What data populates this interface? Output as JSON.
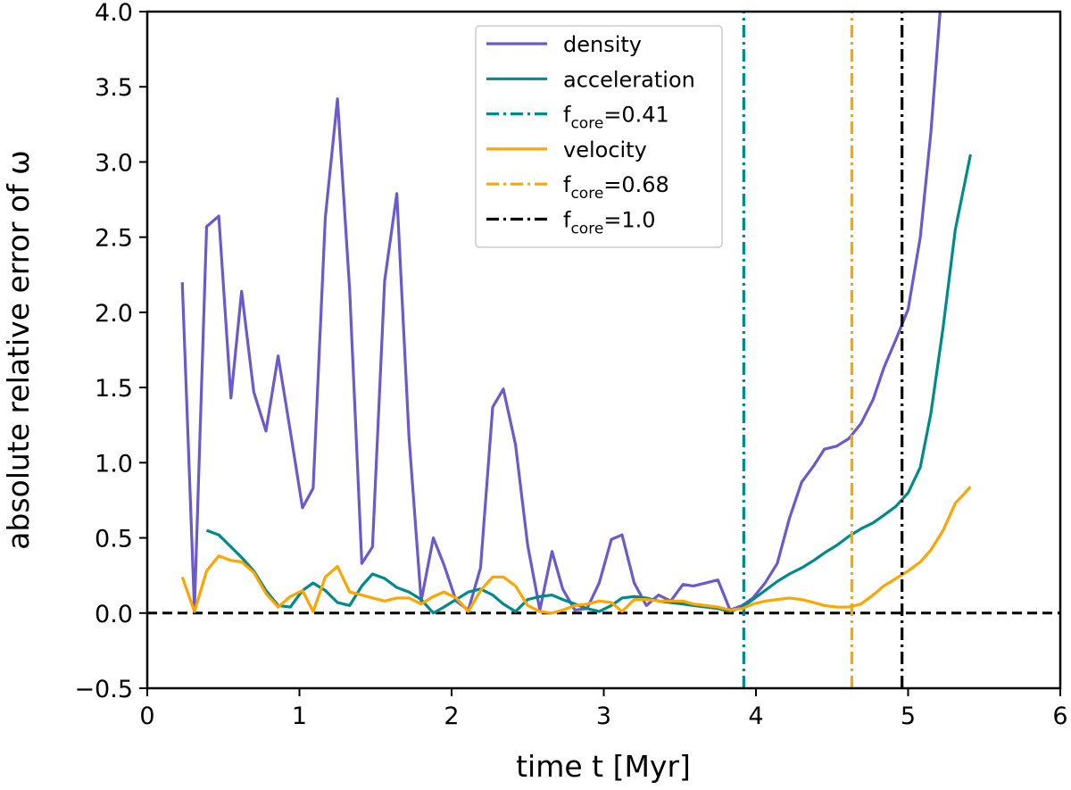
{
  "chart_data": {
    "type": "line",
    "title": "",
    "xlabel": "time t [Myr]",
    "ylabel": "absolute relative error of ω",
    "xlim": [
      0,
      6
    ],
    "ylim": [
      -0.5,
      4.0
    ],
    "xticks": [
      0,
      1,
      2,
      3,
      4,
      5,
      6
    ],
    "xtick_labels": [
      "0",
      "1",
      "2",
      "3",
      "4",
      "5",
      "6"
    ],
    "yticks": [
      -0.5,
      0.0,
      0.5,
      1.0,
      1.5,
      2.0,
      2.5,
      3.0,
      3.5,
      4.0
    ],
    "ytick_labels": [
      "−0.5",
      "0.0",
      "0.5",
      "1.0",
      "1.5",
      "2.0",
      "2.5",
      "3.0",
      "3.5",
      "4.0"
    ],
    "grid": false,
    "legend_position": "top-center",
    "series": [
      {
        "name": "density",
        "color": "#6a5acd",
        "x": [
          0.23,
          0.31,
          0.39,
          0.47,
          0.55,
          0.62,
          0.7,
          0.78,
          0.86,
          0.94,
          1.02,
          1.09,
          1.17,
          1.25,
          1.33,
          1.41,
          1.48,
          1.56,
          1.64,
          1.72,
          1.8,
          1.88,
          1.95,
          2.03,
          2.11,
          2.19,
          2.27,
          2.34,
          2.42,
          2.5,
          2.58,
          2.66,
          2.73,
          2.81,
          2.89,
          2.97,
          3.05,
          3.12,
          3.2,
          3.28,
          3.36,
          3.44,
          3.52,
          3.59,
          3.67,
          3.75,
          3.83,
          3.91,
          3.98,
          4.06,
          4.14,
          4.22,
          4.3,
          4.38,
          4.45,
          4.53,
          4.61,
          4.69,
          4.77,
          4.84,
          4.92,
          5.0,
          5.08,
          5.15,
          5.21
        ],
        "y": [
          2.2,
          0.02,
          2.57,
          2.64,
          1.43,
          2.14,
          1.47,
          1.21,
          1.71,
          1.21,
          0.7,
          0.83,
          2.63,
          3.42,
          2.15,
          0.33,
          0.44,
          2.21,
          2.79,
          1.17,
          0.08,
          0.5,
          0.32,
          0.08,
          0.02,
          0.3,
          1.37,
          1.49,
          1.12,
          0.45,
          0.02,
          0.41,
          0.16,
          0.02,
          0.03,
          0.2,
          0.49,
          0.52,
          0.2,
          0.05,
          0.12,
          0.08,
          0.19,
          0.18,
          0.2,
          0.22,
          0.02,
          0.05,
          0.1,
          0.2,
          0.33,
          0.63,
          0.87,
          0.98,
          1.09,
          1.11,
          1.16,
          1.26,
          1.42,
          1.63,
          1.82,
          2.02,
          2.5,
          3.2,
          4.0
        ]
      },
      {
        "name": "acceleration",
        "color": "#008b8b",
        "x": [
          0.39,
          0.47,
          0.55,
          0.62,
          0.7,
          0.78,
          0.86,
          0.94,
          1.02,
          1.09,
          1.17,
          1.25,
          1.33,
          1.41,
          1.48,
          1.56,
          1.64,
          1.72,
          1.8,
          1.88,
          1.95,
          2.03,
          2.11,
          2.19,
          2.27,
          2.34,
          2.42,
          2.5,
          2.58,
          2.66,
          2.73,
          2.81,
          2.89,
          2.97,
          3.05,
          3.12,
          3.2,
          3.28,
          3.36,
          3.44,
          3.52,
          3.59,
          3.67,
          3.75,
          3.83,
          3.91,
          3.98,
          4.06,
          4.14,
          4.22,
          4.3,
          4.38,
          4.45,
          4.53,
          4.61,
          4.69,
          4.77,
          4.84,
          4.92,
          5.0,
          5.08,
          5.15,
          5.23,
          5.31,
          5.41
        ],
        "y": [
          0.55,
          0.52,
          0.44,
          0.37,
          0.28,
          0.15,
          0.05,
          0.04,
          0.15,
          0.2,
          0.15,
          0.07,
          0.05,
          0.18,
          0.26,
          0.23,
          0.17,
          0.14,
          0.09,
          0.0,
          0.04,
          0.09,
          0.14,
          0.16,
          0.12,
          0.06,
          0.01,
          0.09,
          0.11,
          0.12,
          0.09,
          0.06,
          0.03,
          0.01,
          0.05,
          0.1,
          0.11,
          0.1,
          0.08,
          0.07,
          0.06,
          0.05,
          0.04,
          0.03,
          0.01,
          0.04,
          0.09,
          0.15,
          0.21,
          0.26,
          0.3,
          0.35,
          0.4,
          0.45,
          0.51,
          0.56,
          0.6,
          0.65,
          0.71,
          0.8,
          0.97,
          1.33,
          1.9,
          2.55,
          3.05
        ]
      },
      {
        "name": "f_core=0.41",
        "color": "#008b8b",
        "style": "dashdot",
        "vertical": true,
        "x": [
          3.92,
          3.92
        ],
        "y": [
          -0.5,
          4.0
        ]
      },
      {
        "name": "velocity",
        "color": "#ffa500",
        "x": [
          0.23,
          0.31,
          0.39,
          0.47,
          0.55,
          0.62,
          0.7,
          0.78,
          0.86,
          0.94,
          1.02,
          1.09,
          1.17,
          1.25,
          1.33,
          1.41,
          1.48,
          1.56,
          1.64,
          1.72,
          1.8,
          1.88,
          1.95,
          2.03,
          2.11,
          2.19,
          2.27,
          2.34,
          2.42,
          2.5,
          2.58,
          2.66,
          2.73,
          2.81,
          2.89,
          2.97,
          3.05,
          3.12,
          3.2,
          3.28,
          3.36,
          3.44,
          3.52,
          3.59,
          3.67,
          3.75,
          3.83,
          3.91,
          3.98,
          4.06,
          4.14,
          4.22,
          4.3,
          4.38,
          4.45,
          4.53,
          4.61,
          4.69,
          4.77,
          4.84,
          4.92,
          5.0,
          5.08,
          5.15,
          5.23,
          5.31,
          5.41
        ],
        "y": [
          0.24,
          0.01,
          0.28,
          0.38,
          0.35,
          0.34,
          0.27,
          0.13,
          0.04,
          0.11,
          0.15,
          0.01,
          0.24,
          0.31,
          0.14,
          0.12,
          0.1,
          0.08,
          0.1,
          0.1,
          0.06,
          0.11,
          0.14,
          0.1,
          0.01,
          0.15,
          0.24,
          0.24,
          0.18,
          0.05,
          0.01,
          0.0,
          0.02,
          0.05,
          0.06,
          0.08,
          0.07,
          0.01,
          0.09,
          0.09,
          0.08,
          0.08,
          0.08,
          0.06,
          0.05,
          0.04,
          0.02,
          0.03,
          0.06,
          0.08,
          0.09,
          0.1,
          0.09,
          0.07,
          0.05,
          0.04,
          0.04,
          0.06,
          0.12,
          0.18,
          0.23,
          0.28,
          0.34,
          0.42,
          0.55,
          0.73,
          0.84
        ]
      },
      {
        "name": "f_core=0.68",
        "color": "#ffa500",
        "style": "dashdot",
        "vertical": true,
        "x": [
          4.63,
          4.63
        ],
        "y": [
          -0.5,
          4.0
        ]
      },
      {
        "name": "f_core=1.0",
        "color": "#000000",
        "style": "dashdot",
        "vertical": true,
        "x": [
          4.96,
          4.96
        ],
        "y": [
          -0.5,
          4.0
        ]
      }
    ],
    "reference_line": {
      "y": 0.0,
      "style": "dashed",
      "color": "#000000"
    },
    "legend_entries": [
      {
        "label": "density",
        "color": "#6a5acd",
        "style": "solid"
      },
      {
        "label": "acceleration",
        "color": "#008b8b",
        "style": "solid"
      },
      {
        "label_main": "f",
        "label_sub": "core",
        "label_value": "=0.41",
        "color": "#008b8b",
        "style": "dashdot"
      },
      {
        "label": "velocity",
        "color": "#ffa500",
        "style": "solid"
      },
      {
        "label_main": "f",
        "label_sub": "core",
        "label_value": "=0.68",
        "color": "#ffa500",
        "style": "dashdot"
      },
      {
        "label_main": "f",
        "label_sub": "core",
        "label_value": "=1.0",
        "color": "#000000",
        "style": "dashdot"
      }
    ]
  }
}
